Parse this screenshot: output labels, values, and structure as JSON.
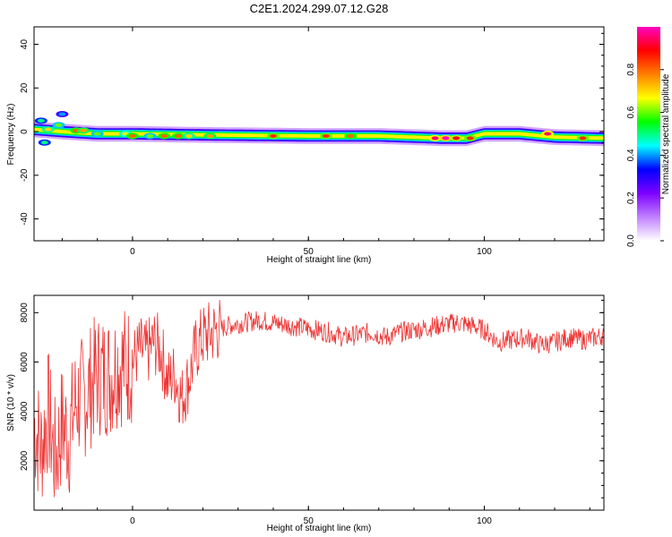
{
  "title": "C2E1.2024.299.07.12.G28",
  "chart_data": [
    {
      "type": "heatmap",
      "xlabel": "Height of straight line (km)",
      "ylabel": "Frequency (Hz)",
      "xlim": [
        -28,
        134
      ],
      "ylim": [
        -50,
        48
      ],
      "xticks": [
        0,
        50,
        100
      ],
      "yticks": [
        -40,
        -20,
        0,
        20,
        40
      ],
      "colorbar": {
        "label": "Normalized spectral amplitude",
        "range": [
          0,
          1
        ],
        "ticks": [
          0.0,
          0.2,
          0.4,
          0.6,
          0.8
        ],
        "tick_labels": [
          "0.0",
          "0.2",
          "0.4",
          "0.6",
          "0.8"
        ],
        "colors": [
          "#ffffff",
          "#c080ff",
          "#7d00ff",
          "#0000ff",
          "#00ffff",
          "#00ff00",
          "#ffff00",
          "#ff8000",
          "#ff0000",
          "#ff00c0"
        ]
      },
      "ridge": [
        [
          -28,
          1
        ],
        [
          -20,
          0
        ],
        [
          -10,
          -1
        ],
        [
          0,
          -1
        ],
        [
          20,
          -1.5
        ],
        [
          50,
          -2
        ],
        [
          70,
          -2
        ],
        [
          88,
          -3
        ],
        [
          95,
          -3
        ],
        [
          100,
          -1
        ],
        [
          110,
          -1
        ],
        [
          120,
          -2.5
        ],
        [
          134,
          -3
        ]
      ],
      "hotspots": [
        {
          "x": -26,
          "y": 5,
          "amp": 0.5
        },
        {
          "x": -25,
          "y": -5,
          "amp": 0.5
        },
        {
          "x": -24,
          "y": 1,
          "amp": 0.7
        },
        {
          "x": -21,
          "y": 3,
          "amp": 0.6
        },
        {
          "x": -20,
          "y": 8,
          "amp": 0.4
        },
        {
          "x": -16,
          "y": 0.5,
          "amp": 0.8
        },
        {
          "x": -14,
          "y": 0.5,
          "amp": 0.75
        },
        {
          "x": -10,
          "y": -1,
          "amp": 0.6
        },
        {
          "x": -2,
          "y": -1,
          "amp": 0.65
        },
        {
          "x": 0,
          "y": -2,
          "amp": 0.8
        },
        {
          "x": 5,
          "y": -2,
          "amp": 0.6
        },
        {
          "x": 9,
          "y": -2,
          "amp": 0.8
        },
        {
          "x": 13,
          "y": -2,
          "amp": 0.8
        },
        {
          "x": 16,
          "y": -2,
          "amp": 0.7
        },
        {
          "x": 22,
          "y": -2,
          "amp": 0.75
        },
        {
          "x": 40,
          "y": -2,
          "amp": 0.85
        },
        {
          "x": 55,
          "y": -2,
          "amp": 0.85
        },
        {
          "x": 62,
          "y": -2,
          "amp": 0.8
        },
        {
          "x": 86,
          "y": -3,
          "amp": 0.95
        },
        {
          "x": 89,
          "y": -3,
          "amp": 1.0
        },
        {
          "x": 92,
          "y": -3,
          "amp": 0.9
        },
        {
          "x": 96,
          "y": -3,
          "amp": 0.85
        },
        {
          "x": 118,
          "y": -1,
          "amp": 0.95
        },
        {
          "x": 128,
          "y": -3,
          "amp": 0.85
        }
      ]
    },
    {
      "type": "line",
      "xlabel": "Height of straight line (km)",
      "ylabel": "SNR (10 * v/v)",
      "xlim": [
        -28,
        134
      ],
      "ylim": [
        0,
        8700
      ],
      "xticks": [
        0,
        50,
        100
      ],
      "yticks": [
        2000,
        4000,
        6000,
        8000
      ],
      "color": "#ee3333",
      "series": [
        {
          "x": [
            -28,
            -26,
            -24,
            -22,
            -20,
            -18,
            -16,
            -14,
            -12,
            -10,
            -8,
            -6,
            -4,
            -2,
            0,
            2,
            4,
            6,
            8,
            10,
            12,
            14,
            16,
            18,
            20,
            24,
            28,
            32,
            36,
            40,
            44,
            48,
            52,
            56,
            60,
            64,
            68,
            72,
            76,
            80,
            84,
            88,
            92,
            96,
            100,
            104,
            108,
            112,
            116,
            120,
            124,
            128,
            132,
            134
          ],
          "y": [
            3500,
            2500,
            4000,
            2000,
            3500,
            3000,
            4500,
            4500,
            5000,
            5500,
            5500,
            5500,
            6000,
            5800,
            6000,
            6500,
            6300,
            6800,
            6500,
            5200,
            5500,
            4500,
            5300,
            6500,
            7000,
            7300,
            7500,
            7600,
            7700,
            7600,
            7500,
            7400,
            7300,
            7200,
            7000,
            7100,
            7200,
            7000,
            7200,
            7300,
            7400,
            7500,
            7600,
            7500,
            7300,
            6800,
            6900,
            7000,
            6700,
            6800,
            7000,
            6900,
            7000,
            7100
          ]
        }
      ]
    }
  ]
}
